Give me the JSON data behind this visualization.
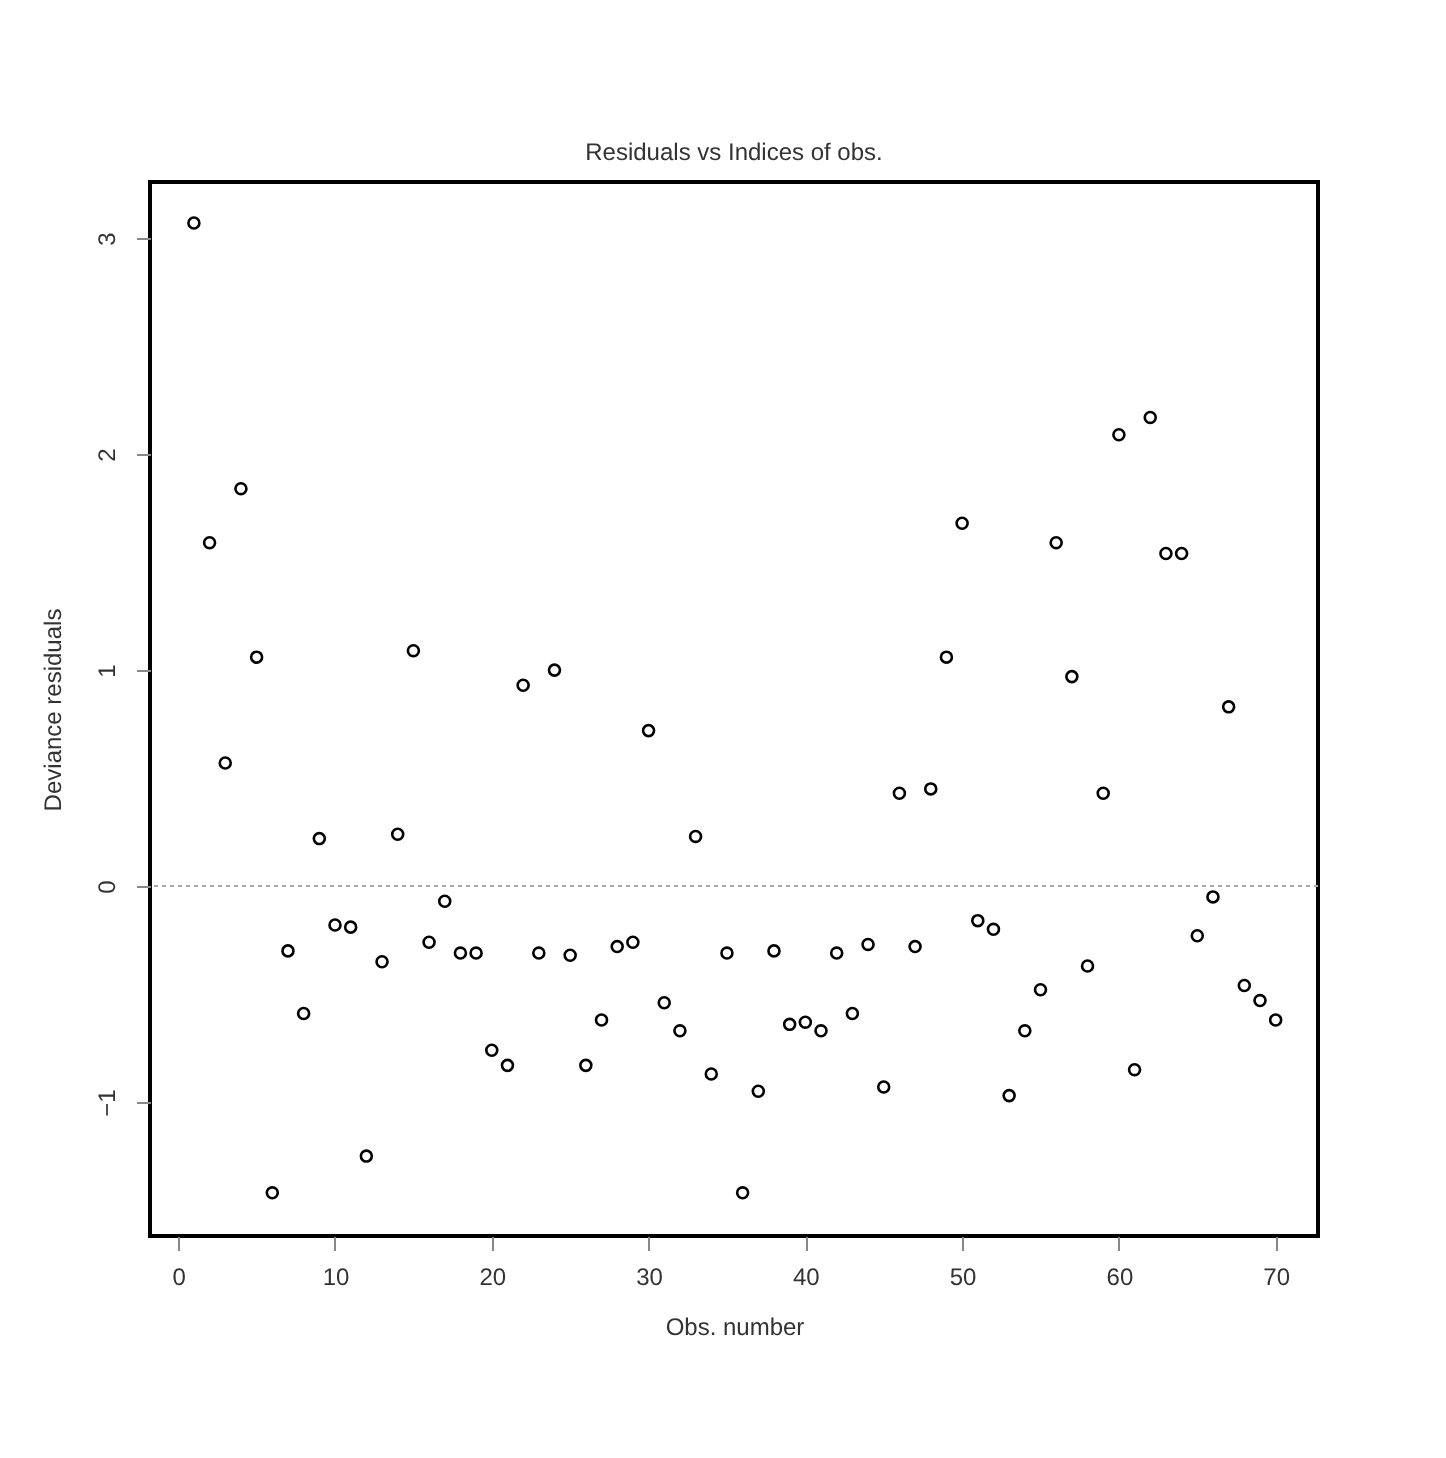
{
  "chart_data": {
    "type": "scatter",
    "title": "Residuals vs Indices of obs.",
    "xlabel": "Obs. number",
    "ylabel": "Deviance residuals",
    "x": [
      1,
      2,
      3,
      4,
      5,
      6,
      7,
      8,
      9,
      10,
      11,
      12,
      13,
      14,
      15,
      16,
      17,
      18,
      19,
      20,
      21,
      22,
      23,
      24,
      25,
      26,
      27,
      28,
      29,
      30,
      31,
      32,
      33,
      34,
      35,
      36,
      37,
      38,
      39,
      40,
      41,
      42,
      43,
      44,
      45,
      46,
      47,
      48,
      49,
      50,
      51,
      52,
      53,
      54,
      55,
      56,
      57,
      58,
      59,
      60,
      61,
      62,
      63,
      64,
      65,
      66,
      67,
      68,
      69,
      70
    ],
    "series": [
      {
        "color": "#000000",
        "values": [
          3.07,
          1.59,
          0.57,
          1.84,
          1.06,
          -1.42,
          -0.3,
          -0.59,
          0.22,
          -0.18,
          -0.19,
          -1.25,
          -0.35,
          0.24,
          1.09,
          -0.26,
          -0.07,
          -0.31,
          -0.31,
          -0.76,
          -0.83,
          0.93,
          -0.31,
          1.0,
          -0.32,
          -0.83,
          -0.62,
          -0.28,
          -0.26,
          0.72,
          -0.54,
          -0.67,
          0.23,
          -0.87,
          -0.31,
          -1.42,
          -0.95,
          -0.3,
          -0.64,
          -0.63,
          -0.67,
          -0.31,
          -0.59,
          -0.27,
          -0.93,
          0.43,
          -0.28,
          0.45,
          1.06,
          1.68,
          -0.16,
          -0.2,
          -0.97,
          -0.67,
          -0.48,
          1.59,
          0.97,
          -0.37,
          0.43,
          2.09,
          -0.85,
          2.17,
          1.54,
          1.54,
          -0.23,
          -0.05,
          0.83,
          -0.46,
          -0.53,
          -0.62
        ]
      }
    ],
    "xlim": [
      -1.8,
      72.7
    ],
    "ylim": [
      -1.62,
      3.26
    ],
    "xticks": [
      0,
      10,
      20,
      30,
      40,
      50,
      60,
      70
    ],
    "yticks": [
      -1,
      0,
      1,
      2,
      3
    ],
    "ref_lines": [
      {
        "axis": "y",
        "value": 0,
        "color": "#aaaaaa",
        "line_style": "dotted"
      }
    ],
    "marker": "circle",
    "grid": false
  }
}
